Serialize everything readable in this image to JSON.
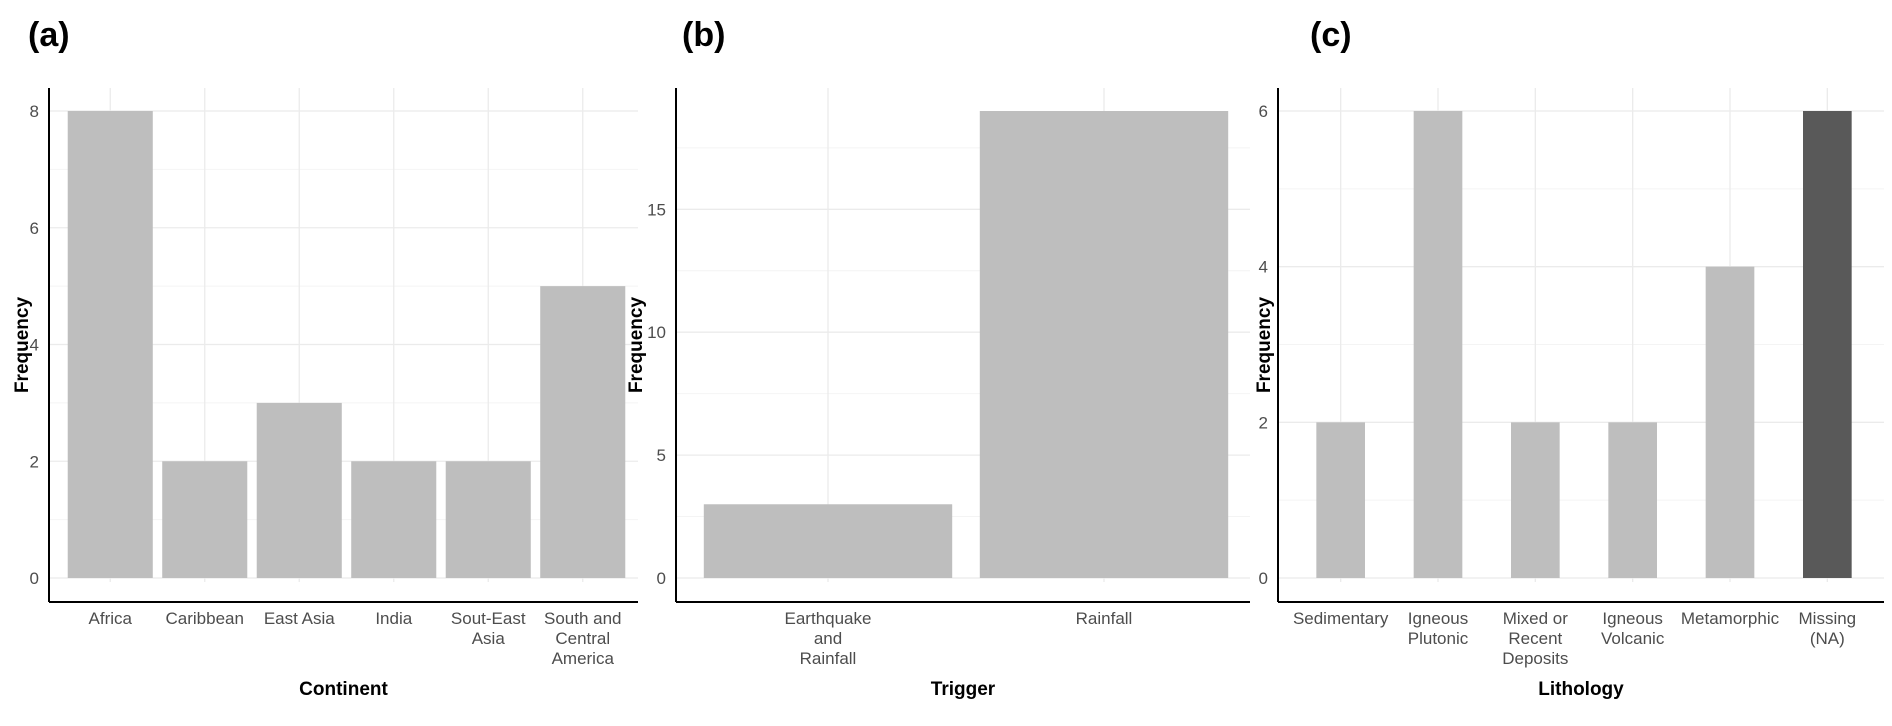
{
  "chart_data": [
    {
      "panel": "(a)",
      "type": "bar",
      "title": "",
      "xlabel": "Continent",
      "ylabel": "Frequency",
      "categories": [
        "Africa",
        "Caribbean",
        "East Asia",
        "India",
        "Sout-East Asia",
        "South and Central America"
      ],
      "category_lines": [
        [
          "Africa"
        ],
        [
          "Caribbean"
        ],
        [
          "East Asia"
        ],
        [
          "India"
        ],
        [
          "Sout-East",
          "Asia"
        ],
        [
          "South and",
          "Central",
          "America"
        ]
      ],
      "values": [
        8,
        2,
        3,
        2,
        2,
        5
      ],
      "bar_colors": [
        "#bebebe",
        "#bebebe",
        "#bebebe",
        "#bebebe",
        "#bebebe",
        "#bebebe"
      ],
      "ylim": [
        0,
        8
      ],
      "yticks": [
        0,
        2,
        4,
        6,
        8
      ],
      "grid": true,
      "legend": "none"
    },
    {
      "panel": "(b)",
      "type": "bar",
      "title": "",
      "xlabel": "Trigger",
      "ylabel": "Frequency",
      "categories": [
        "Earthquake and Rainfall",
        "Rainfall"
      ],
      "category_lines": [
        [
          "Earthquake",
          "and",
          "Rainfall"
        ],
        [
          "Rainfall"
        ]
      ],
      "values": [
        3,
        19
      ],
      "bar_colors": [
        "#bebebe",
        "#bebebe"
      ],
      "ylim": [
        0,
        19
      ],
      "yticks": [
        0,
        5,
        10,
        15
      ],
      "grid": true,
      "legend": "none"
    },
    {
      "panel": "(c)",
      "type": "bar",
      "title": "",
      "xlabel": "Lithology",
      "ylabel": "Frequency",
      "categories": [
        "Sedimentary",
        "Igneous Plutonic",
        "Mixed or Recent Deposits",
        "Igneous Volcanic",
        "Metamorphic",
        "Missing (NA)"
      ],
      "category_lines": [
        [
          "Sedimentary"
        ],
        [
          "Igneous",
          "Plutonic"
        ],
        [
          "Mixed or",
          "Recent",
          "Deposits"
        ],
        [
          "Igneous",
          "Volcanic"
        ],
        [
          "Metamorphic"
        ],
        [
          "Missing",
          "(NA)"
        ]
      ],
      "values": [
        2,
        6,
        2,
        2,
        4,
        6
      ],
      "bar_colors": [
        "#bebebe",
        "#bebebe",
        "#bebebe",
        "#bebebe",
        "#bebebe",
        "#595959"
      ],
      "ylim": [
        0,
        6
      ],
      "yticks": [
        0,
        2,
        4,
        6
      ],
      "grid": true,
      "legend": "none"
    }
  ]
}
